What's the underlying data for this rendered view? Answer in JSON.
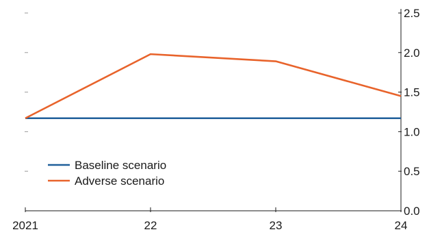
{
  "chart_data": {
    "type": "line",
    "title": "",
    "xlabel": "",
    "ylabel": "",
    "x": [
      2021,
      2022,
      2023,
      2024
    ],
    "x_tick_labels": [
      "2021",
      "22",
      "23",
      "24"
    ],
    "y_ticks": [
      0.0,
      0.5,
      1.0,
      1.5,
      2.0,
      2.5
    ],
    "y_tick_labels": [
      "0.0",
      "0.5",
      "1.0",
      "1.5",
      "2.0",
      "2.5"
    ],
    "ylim": [
      0,
      2.5
    ],
    "y_axis_side": "right",
    "grid": false,
    "legend_position": "bottom-left",
    "series": [
      {
        "name": "Baseline scenario",
        "color": "#1f5f9a",
        "values": [
          1.17,
          1.17,
          1.17,
          1.17
        ]
      },
      {
        "name": "Adverse scenario",
        "color": "#e8632b",
        "values": [
          1.17,
          1.98,
          1.89,
          1.45
        ]
      }
    ]
  }
}
